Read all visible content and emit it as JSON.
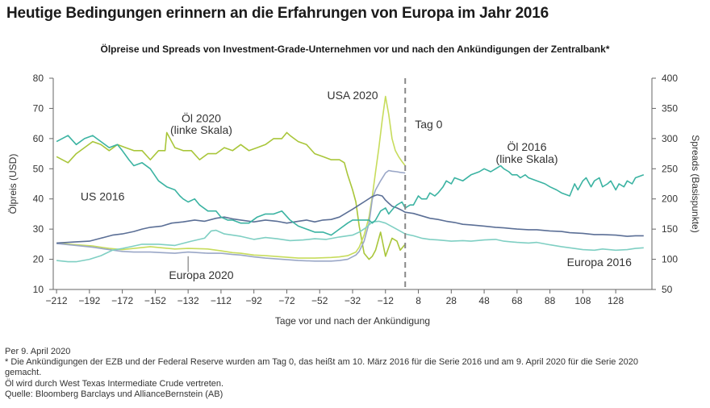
{
  "title": "Heutige Bedingungen erinnern an die Erfahrungen von Europa im Jahr 2016",
  "subtitle": "Ölpreise und Spreads von Investment-Grade-Unternehmen vor und nach den Ankündigungen der Zentralbank*",
  "notes": {
    "date": "Per 9. April 2020",
    "footnote": "* Die Ankündigungen der EZB und der Federal Reserve wurden am Tag 0, das heißt am 10. März 2016 für die Serie 2016 und am 9. April 2020 für die Serie 2020",
    "footnote_cont": "gemacht.",
    "oil_note": "Öl wird durch West Texas Intermediate Crude vertreten.",
    "source": "Quelle: Bloomberg Barclays und AllianceBernstein (AB)"
  },
  "colors": {
    "oil2020": "#a9c63a",
    "oil2016": "#3bb3a2",
    "us2016": "#5b6f96",
    "europa2016": "#7fcfc3",
    "usa2020": "#c7dc5c",
    "europa2020": "#9aa7c7",
    "axis": "#666666",
    "day0": "#888888"
  },
  "chart_data": {
    "type": "line",
    "xlabel": "Tage vor und nach der Ankündigung",
    "ylabel_left": "Ölpreis (USD)",
    "ylabel_right": "Spreads (Basispunkte)",
    "xlim": [
      -214,
      150
    ],
    "ylim_left": [
      10,
      80
    ],
    "ylim_right": [
      50,
      400
    ],
    "xticks": [
      -212,
      -192,
      -172,
      -152,
      -132,
      -112,
      -92,
      -72,
      -52,
      -32,
      -12,
      8,
      28,
      48,
      68,
      88,
      108,
      128
    ],
    "xtick_labels": [
      "−212",
      "−192",
      "−172",
      "−152",
      "−132",
      "−112",
      "−92",
      "−72",
      "−52",
      "−32",
      "−12",
      "8",
      "28",
      "48",
      "68",
      "88",
      "108",
      "128"
    ],
    "yticks_left": [
      10,
      20,
      30,
      40,
      50,
      60,
      70,
      80
    ],
    "yticks_right": [
      50,
      100,
      150,
      200,
      250,
      300,
      350,
      400
    ],
    "day0_label": "Tag 0",
    "annotations": [
      {
        "text": "Öl 2020",
        "x": -124,
        "yl": 65.5
      },
      {
        "text": "(linke Skala)",
        "x": -124,
        "yl": 61.5
      },
      {
        "text": "USA 2020",
        "x": -32,
        "yl": 73
      },
      {
        "text": "Öl 2016",
        "x": 74,
        "yl": 56
      },
      {
        "text": "(linke Skala)",
        "x": 74,
        "yl": 52
      },
      {
        "text": "US 2016",
        "x": -184,
        "yl": 39.5
      },
      {
        "text": "Europa 2020",
        "x": -124,
        "yl": 13.5
      },
      {
        "text": "Europa 2016",
        "x": 118,
        "yl": 17.8
      }
    ],
    "series": [
      {
        "name": "Öl 2020",
        "axis": "left",
        "color": "#a9c63a",
        "x": [
          -212,
          -205,
          -200,
          -195,
          -190,
          -185,
          -180,
          -175,
          -170,
          -165,
          -160,
          -155,
          -150,
          -146,
          -145,
          -140,
          -135,
          -130,
          -125,
          -120,
          -115,
          -110,
          -105,
          -100,
          -95,
          -90,
          -85,
          -80,
          -75,
          -72,
          -70,
          -65,
          -60,
          -55,
          -50,
          -45,
          -40,
          -37,
          -35,
          -32,
          -30,
          -28,
          -25,
          -22,
          -20,
          -18,
          -15,
          -12,
          -10,
          -8,
          -5,
          -3,
          0
        ],
        "y": [
          54,
          52,
          55,
          57,
          59,
          58,
          56,
          58,
          57,
          56,
          56,
          53,
          56,
          56,
          62,
          57,
          56,
          56,
          53,
          55,
          55,
          57,
          56,
          58,
          56,
          57,
          58,
          60,
          60,
          62,
          61,
          59,
          58,
          55,
          54,
          53,
          53,
          52,
          48,
          43,
          39,
          31,
          22,
          20,
          21,
          23,
          29,
          21,
          24,
          27,
          26,
          23,
          25
        ]
      },
      {
        "name": "USA 2020",
        "axis": "right",
        "color": "#c7dc5c",
        "x": [
          -212,
          -200,
          -190,
          -180,
          -172,
          -165,
          -155,
          -148,
          -140,
          -132,
          -120,
          -112,
          -105,
          -100,
          -92,
          -85,
          -75,
          -65,
          -55,
          -45,
          -40,
          -35,
          -30,
          -28,
          -25,
          -22,
          -20,
          -18,
          -16,
          -14,
          -12,
          -10,
          -8,
          -6,
          -4,
          -2,
          0
        ],
        "y": [
          127,
          124,
          122,
          118,
          116,
          118,
          121,
          119,
          117,
          118,
          117,
          114,
          111,
          110,
          107,
          106,
          104,
          102,
          102,
          103,
          104,
          106,
          112,
          120,
          140,
          170,
          205,
          245,
          285,
          330,
          370,
          340,
          300,
          280,
          270,
          262,
          255
        ]
      },
      {
        "name": "Europa 2020",
        "axis": "right",
        "color": "#9aa7c7",
        "x": [
          -212,
          -200,
          -190,
          -180,
          -172,
          -165,
          -155,
          -148,
          -140,
          -132,
          -120,
          -112,
          -105,
          -100,
          -92,
          -85,
          -75,
          -65,
          -55,
          -45,
          -40,
          -35,
          -30,
          -28,
          -25,
          -22,
          -20,
          -18,
          -15,
          -12,
          -10,
          -8,
          -5,
          -3,
          0
        ],
        "y": [
          126,
          123,
          120,
          116,
          113,
          112,
          112,
          111,
          110,
          112,
          110,
          110,
          108,
          107,
          104,
          102,
          100,
          98,
          97,
          97,
          98,
          100,
          107,
          113,
          130,
          160,
          200,
          215,
          230,
          243,
          247,
          246,
          245,
          244,
          243
        ]
      },
      {
        "name": "US 2016",
        "axis": "right",
        "color": "#5b6f96",
        "x": [
          -212,
          -200,
          -192,
          -185,
          -178,
          -172,
          -165,
          -160,
          -155,
          -148,
          -142,
          -135,
          -128,
          -122,
          -115,
          -110,
          -105,
          -100,
          -92,
          -85,
          -78,
          -72,
          -65,
          -60,
          -55,
          -50,
          -45,
          -40,
          -32,
          -28,
          -24,
          -20,
          -17,
          -14,
          -12,
          -10,
          -8,
          -5,
          -2,
          0,
          5,
          10,
          15,
          20,
          25,
          30,
          35,
          40,
          48,
          55,
          60,
          68,
          75,
          80,
          88,
          95,
          100,
          108,
          115,
          120,
          128,
          135,
          140,
          145
        ],
        "y": [
          127,
          129,
          130,
          135,
          140,
          142,
          146,
          150,
          153,
          155,
          160,
          162,
          165,
          163,
          168,
          170,
          167,
          165,
          162,
          165,
          163,
          160,
          163,
          165,
          162,
          165,
          166,
          170,
          183,
          190,
          197,
          204,
          207,
          205,
          198,
          193,
          188,
          185,
          181,
          178,
          176,
          172,
          168,
          166,
          163,
          161,
          158,
          157,
          155,
          153,
          152,
          150,
          149,
          149,
          147,
          146,
          144,
          143,
          141,
          141,
          140,
          138,
          139,
          139
        ]
      },
      {
        "name": "Europa 2016",
        "axis": "right",
        "color": "#7fcfc3",
        "x": [
          -212,
          -205,
          -200,
          -192,
          -185,
          -178,
          -172,
          -165,
          -160,
          -150,
          -140,
          -130,
          -122,
          -118,
          -115,
          -110,
          -100,
          -92,
          -85,
          -78,
          -70,
          -62,
          -55,
          -48,
          -40,
          -32,
          -28,
          -24,
          -20,
          -16,
          -12,
          -8,
          -4,
          0,
          5,
          10,
          15,
          20,
          28,
          35,
          40,
          48,
          55,
          60,
          68,
          75,
          80,
          88,
          95,
          100,
          108,
          115,
          120,
          128,
          135,
          140,
          145
        ],
        "y": [
          98,
          96,
          96,
          100,
          106,
          115,
          118,
          122,
          125,
          125,
          123,
          130,
          135,
          147,
          148,
          142,
          138,
          133,
          136,
          134,
          131,
          132,
          134,
          133,
          137,
          140,
          145,
          152,
          162,
          163,
          160,
          154,
          148,
          142,
          139,
          135,
          133,
          132,
          130,
          131,
          130,
          132,
          133,
          130,
          128,
          127,
          128,
          124,
          121,
          119,
          116,
          115,
          117,
          115,
          116,
          118,
          119
        ]
      },
      {
        "name": "Öl 2016",
        "axis": "left",
        "color": "#3bb3a2",
        "x": [
          -212,
          -205,
          -200,
          -195,
          -190,
          -185,
          -180,
          -175,
          -172,
          -168,
          -165,
          -160,
          -155,
          -150,
          -145,
          -140,
          -137,
          -135,
          -132,
          -128,
          -125,
          -120,
          -115,
          -112,
          -108,
          -105,
          -100,
          -95,
          -90,
          -85,
          -80,
          -75,
          -70,
          -65,
          -60,
          -55,
          -50,
          -45,
          -40,
          -35,
          -32,
          -28,
          -25,
          -22,
          -20,
          -18,
          -15,
          -12,
          -10,
          -7,
          -5,
          -2,
          0,
          3,
          5,
          8,
          10,
          13,
          15,
          18,
          20,
          23,
          25,
          28,
          30,
          35,
          40,
          45,
          48,
          52,
          55,
          58,
          60,
          63,
          65,
          68,
          70,
          73,
          75,
          80,
          85,
          88,
          92,
          95,
          100,
          103,
          105,
          108,
          110,
          113,
          115,
          118,
          120,
          123,
          125,
          128,
          130,
          133,
          135,
          138,
          140,
          145
        ],
        "y": [
          59,
          61,
          58,
          60,
          61,
          59,
          57,
          58,
          56,
          53,
          51,
          52,
          50,
          46,
          44,
          43,
          41,
          40,
          39,
          40,
          38,
          36,
          36,
          34,
          33,
          33,
          32,
          32,
          34,
          35,
          35,
          36,
          33,
          31,
          30,
          29,
          29,
          28,
          30,
          32,
          33,
          33,
          33,
          33,
          32,
          33,
          36,
          37,
          35,
          37,
          38,
          39,
          37,
          38,
          38,
          41,
          40,
          40,
          42,
          41,
          42,
          44,
          46,
          45,
          47,
          46,
          48,
          49,
          50,
          49,
          50,
          51,
          50,
          49,
          48,
          48,
          47,
          48,
          47,
          46,
          45,
          44,
          43,
          42,
          41,
          45,
          43,
          46,
          47,
          44,
          46,
          47,
          44,
          45,
          46,
          43,
          45,
          44,
          46,
          45,
          47,
          48
        ]
      }
    ]
  }
}
